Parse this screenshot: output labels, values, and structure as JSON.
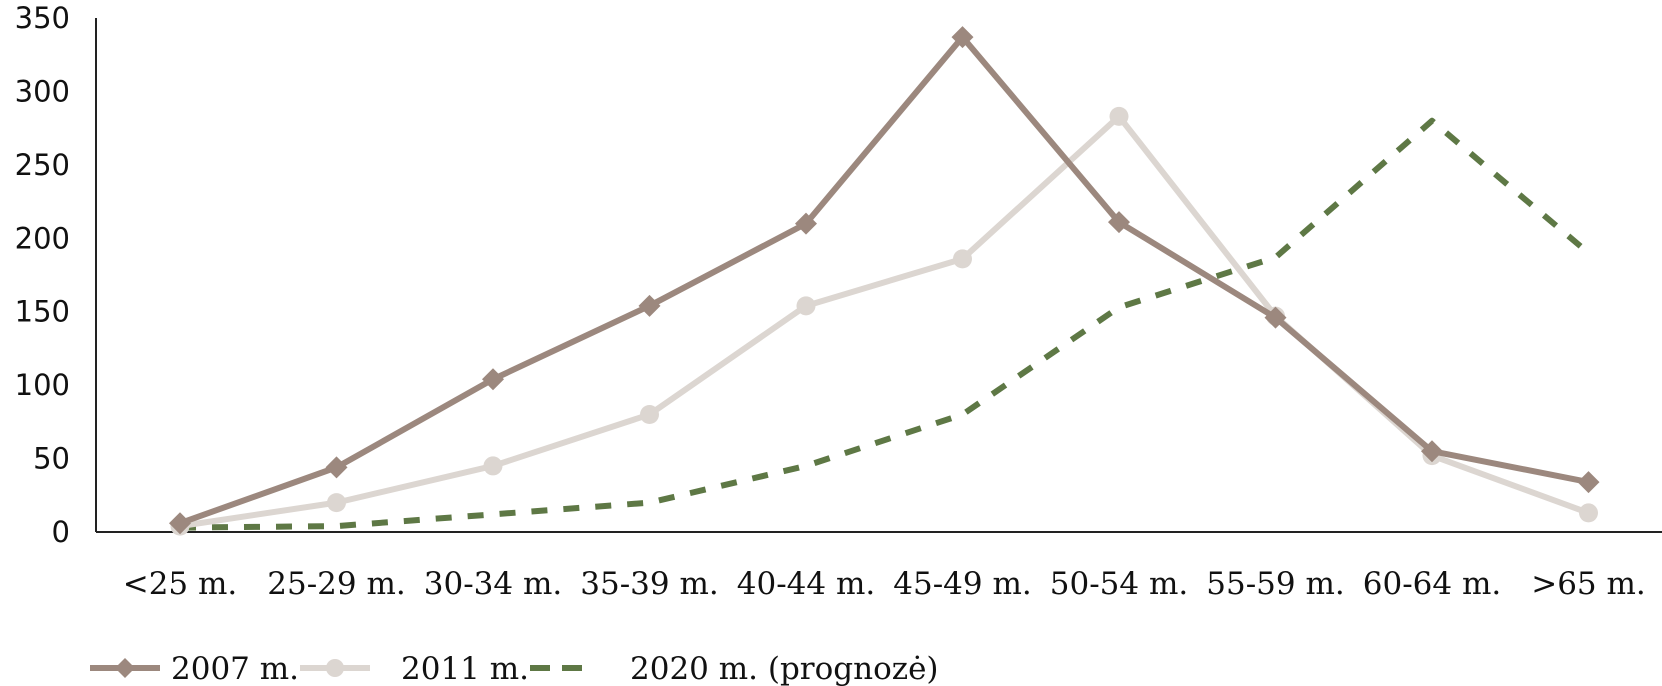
{
  "chart_data": {
    "type": "line",
    "title": "",
    "xlabel": "",
    "ylabel": "",
    "ylim": [
      0,
      350
    ],
    "yticks": [
      "0",
      "50",
      "100",
      "150",
      "200",
      "250",
      "300",
      "350"
    ],
    "categories": [
      "<25 m.",
      "25-29 m.",
      "30-34 m.",
      "35-39 m.",
      "40-44 m.",
      "45-49 m.",
      "50-54 m.",
      "55-59 m.",
      "60-64 m.",
      ">65 m."
    ],
    "grid": false,
    "legend_position": "bottom-left",
    "series": [
      {
        "name": "2007 m.",
        "color": "#9c887e",
        "marker": "diamond",
        "values": [
          6,
          44,
          104,
          154,
          210,
          337,
          211,
          146,
          55,
          34
        ]
      },
      {
        "name": "2011 m.",
        "color": "#dcd6d1",
        "marker": "circle",
        "values": [
          4,
          20,
          45,
          80,
          154,
          186,
          283,
          147,
          52,
          13
        ]
      },
      {
        "name": "2020 m. (prognozė)",
        "color": "#5e7845",
        "marker": "none",
        "dashed": true,
        "values": [
          3,
          4,
          12,
          20,
          45,
          80,
          153,
          187,
          280,
          190
        ]
      }
    ]
  }
}
